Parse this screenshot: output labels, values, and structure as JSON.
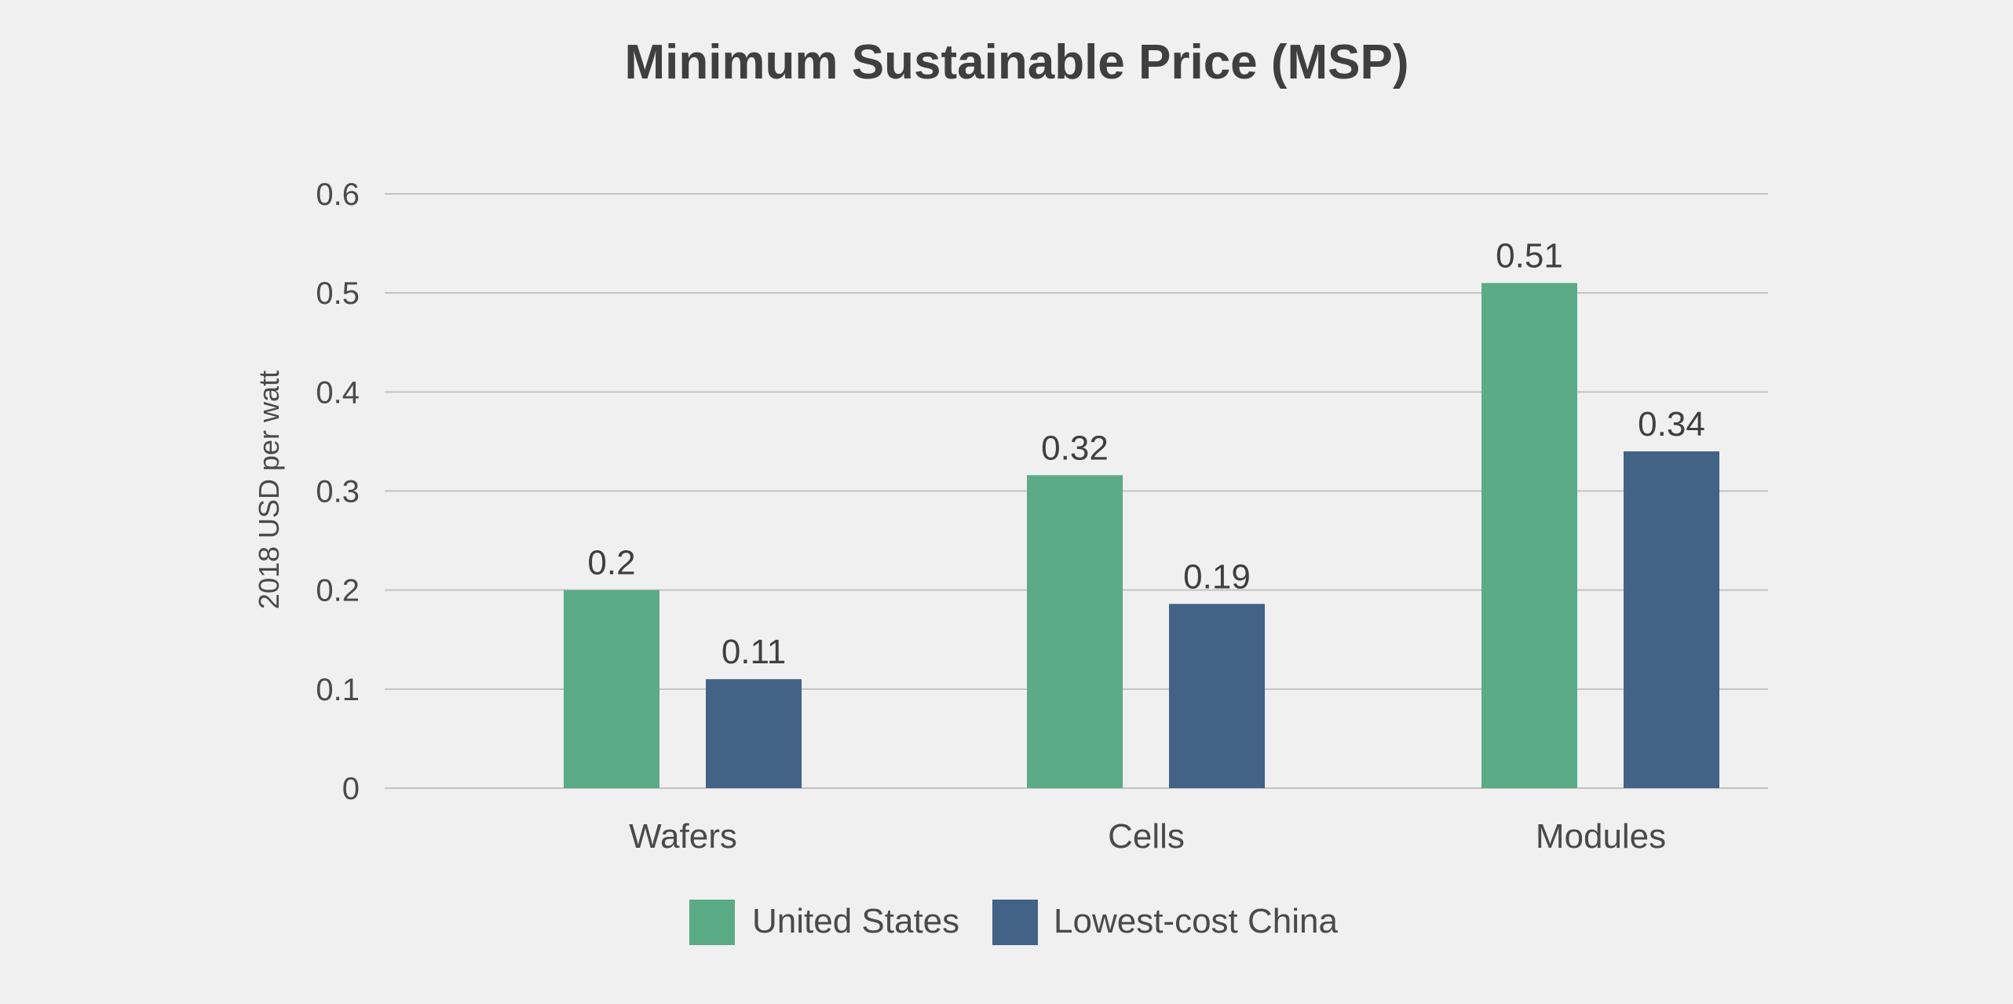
{
  "chart_data": {
    "type": "bar",
    "title": "Minimum Sustainable Price (MSP)",
    "xlabel": "",
    "ylabel": "2018 USD per watt",
    "ylim": [
      0,
      0.6
    ],
    "yticks": [
      "0",
      "0.1",
      "0.2",
      "0.3",
      "0.4",
      "0.5",
      "0.6"
    ],
    "categories": [
      "Wafers",
      "Cells",
      "Modules"
    ],
    "series": [
      {
        "name": "United States",
        "color": "#5bab87",
        "values": [
          0.2,
          0.316,
          0.51
        ],
        "labels": [
          "0.2",
          "0.32",
          "0.51"
        ]
      },
      {
        "name": "Lowest-cost China",
        "color": "#426286",
        "values": [
          0.11,
          0.186,
          0.34
        ],
        "labels": [
          "0.11",
          "0.19",
          "0.34"
        ]
      }
    ],
    "grid": true,
    "legend_position": "bottom-center"
  }
}
